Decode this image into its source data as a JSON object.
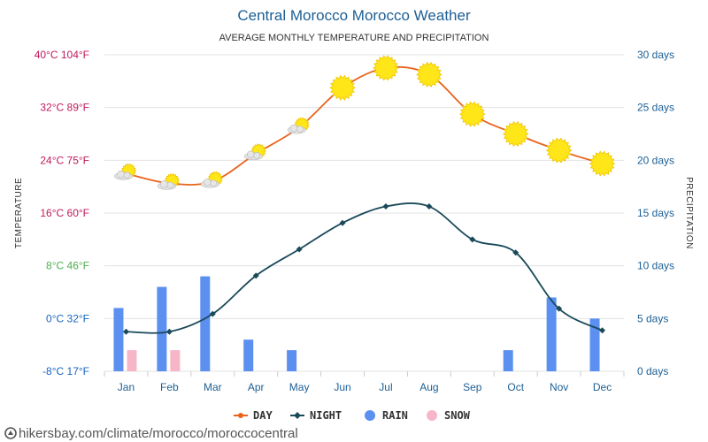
{
  "chart_data": {
    "type": "line",
    "title": "Central Morocco Morocco Weather",
    "subtitle": "AVERAGE MONTHLY TEMPERATURE AND PRECIPITATION",
    "categories": [
      "Jan",
      "Feb",
      "Mar",
      "Apr",
      "May",
      "Jun",
      "Jul",
      "Aug",
      "Sep",
      "Oct",
      "Nov",
      "Dec"
    ],
    "y_left": {
      "label": "TEMPERATURE",
      "unit": "°C",
      "range": [
        -8,
        40
      ],
      "ticks": [
        {
          "value": 40,
          "label": "40°C 104°F",
          "color": "#c2185b"
        },
        {
          "value": 32,
          "label": "32°C 89°F",
          "color": "#c2185b"
        },
        {
          "value": 24,
          "label": "24°C 75°F",
          "color": "#c2185b"
        },
        {
          "value": 16,
          "label": "16°C 60°F",
          "color": "#c2185b"
        },
        {
          "value": 8,
          "label": "8°C 46°F",
          "color": "#4caf50"
        },
        {
          "value": 0,
          "label": "0°C 32°F",
          "color": "#1565c0"
        },
        {
          "value": -8,
          "label": "-8°C 17°F",
          "color": "#1565c0"
        }
      ]
    },
    "y_right": {
      "label": "PRECIPITATION",
      "unit": "days",
      "range": [
        0,
        30
      ],
      "ticks": [
        {
          "value": 30,
          "label": "30 days"
        },
        {
          "value": 25,
          "label": "25 days"
        },
        {
          "value": 20,
          "label": "20 days"
        },
        {
          "value": 15,
          "label": "15 days"
        },
        {
          "value": 10,
          "label": "10 days"
        },
        {
          "value": 5,
          "label": "5 days"
        },
        {
          "value": 0,
          "label": "0 days"
        }
      ]
    },
    "series": [
      {
        "name": "DAY",
        "kind": "line",
        "axis": "left",
        "color": "#e8641b",
        "values": [
          22,
          20.5,
          20.8,
          25,
          29,
          35,
          38,
          37,
          31,
          28,
          25.5,
          23.5
        ],
        "icons": [
          "partly-cloudy",
          "partly-cloudy",
          "partly-cloudy",
          "partly-cloudy",
          "partly-cloudy",
          "sunny",
          "sunny",
          "sunny",
          "sunny",
          "sunny",
          "sunny",
          "sunny"
        ]
      },
      {
        "name": "NIGHT",
        "kind": "line",
        "axis": "left",
        "color": "#1a4a5a",
        "values": [
          -2,
          -2,
          0.7,
          6.5,
          10.5,
          14.5,
          17,
          17,
          12,
          10,
          1.5,
          -1.8
        ]
      },
      {
        "name": "RAIN",
        "kind": "bar",
        "axis": "right",
        "color": "#5b8ff0",
        "values": [
          6,
          8,
          9,
          3,
          2,
          0,
          0,
          0,
          0,
          2,
          7,
          5
        ]
      },
      {
        "name": "SNOW",
        "kind": "bar",
        "axis": "right",
        "color": "#f7b6c8",
        "values": [
          2,
          2,
          0,
          0,
          0,
          0,
          0,
          0,
          0,
          0,
          0,
          0
        ]
      }
    ],
    "legend": {
      "position": "bottom-center",
      "items": [
        "DAY",
        "NIGHT",
        "RAIN",
        "SNOW"
      ]
    }
  },
  "footer": {
    "url": "hikersbay.com/climate/morocco/moroccocentral"
  },
  "colors": {
    "title": "#1c5f95",
    "right_axis": "#1c5f95",
    "month_labels": "#1c5f95",
    "grid": "#e3e3e3",
    "sun_fill": "#ffe619",
    "sun_stroke": "#f0c400",
    "cloud_fill": "#e6e6e6"
  }
}
